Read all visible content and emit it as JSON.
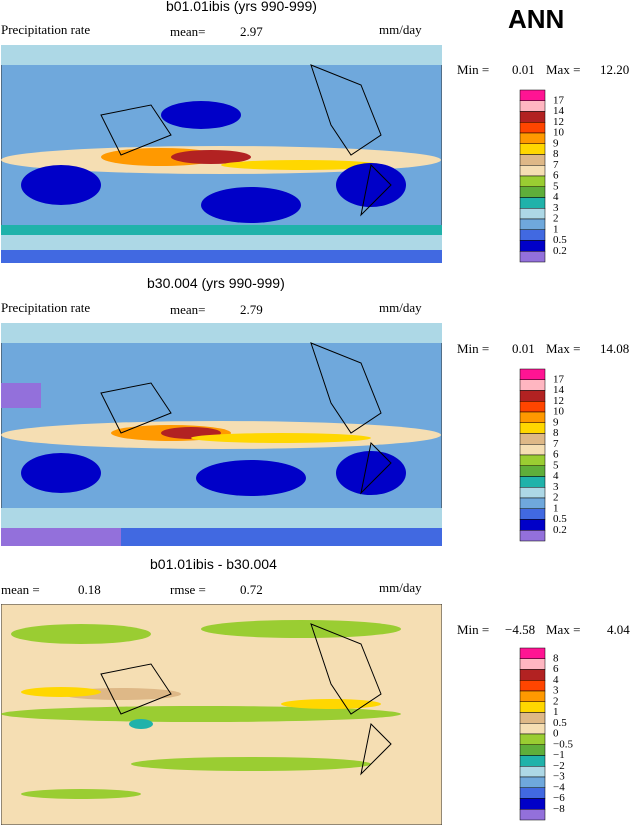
{
  "header": {
    "season": "ANN"
  },
  "colorbar_colors": [
    "#ff1493",
    "#ffb6c1",
    "#b22222",
    "#ff4500",
    "#ff9900",
    "#ffd700",
    "#deb887",
    "#f5deb3",
    "#9acd32",
    "#5fae3a",
    "#20b2aa",
    "#add8e6",
    "#6fa8dc",
    "#4169e1",
    "#0000c8",
    "#9370db"
  ],
  "panels": [
    {
      "title": "b01.01ibis (yrs 990-999)",
      "label": "Precipitation rate",
      "stat_label": "mean=",
      "stat_value": "2.97",
      "units": "mm/day",
      "min_label": "Min =",
      "min": "0.01",
      "max_label": "Max =",
      "max": "12.20",
      "levels": [
        "17",
        "14",
        "12",
        "10",
        "9",
        "8",
        "7",
        "6",
        "5",
        "4",
        "3",
        "2",
        "1",
        "0.5",
        "0.2"
      ]
    },
    {
      "title": "b30.004 (yrs 990-999)",
      "label": "Precipitation rate",
      "stat_label": "mean=",
      "stat_value": "2.79",
      "units": "mm/day",
      "min_label": "Min =",
      "min": "0.01",
      "max_label": "Max =",
      "max": "14.08",
      "levels": [
        "17",
        "14",
        "12",
        "10",
        "9",
        "8",
        "7",
        "6",
        "5",
        "4",
        "3",
        "2",
        "1",
        "0.5",
        "0.2"
      ]
    },
    {
      "title": "b01.01ibis - b30.004",
      "label": "mean =",
      "label_value": "0.18",
      "stat_label": "rmse =",
      "stat_value": "0.72",
      "units": "mm/day",
      "min_label": "Min =",
      "min": "−4.58",
      "max_label": "Max =",
      "max": "4.04",
      "levels": [
        "8",
        "6",
        "4",
        "3",
        "2",
        "1",
        "0.5",
        "0",
        "−0.5",
        "−1",
        "−2",
        "−3",
        "−4",
        "−6",
        "−8"
      ]
    }
  ]
}
